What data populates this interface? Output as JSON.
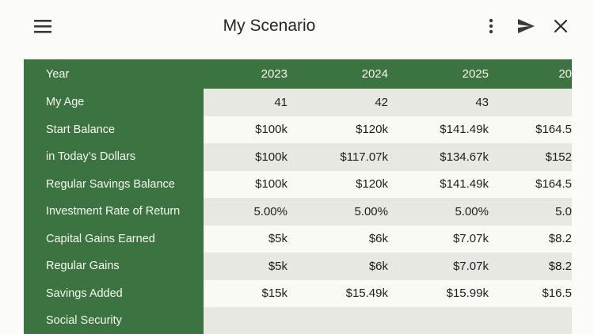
{
  "app_bar": {
    "title": "My Scenario",
    "icons": {
      "menu": "hamburger-menu",
      "more": "kebab-vertical-dots",
      "send": "send-arrow",
      "close": "close-x"
    }
  },
  "colors": {
    "green": "#3b7441",
    "row_dark": "#e8e8e2",
    "row_light": "#fafaf5",
    "page_bg": "#fbfbf7",
    "icon": "#3a3a3a",
    "header_text": "#f7f7f0",
    "value_text": "#1e1e1e"
  },
  "table": {
    "header": {
      "label": "Year",
      "columns": [
        "2023",
        "2024",
        "2025",
        "20"
      ]
    },
    "rows": [
      {
        "label": "My Age",
        "values": [
          "41",
          "42",
          "43",
          ""
        ]
      },
      {
        "label": "Start Balance",
        "values": [
          "$100k",
          "$120k",
          "$141.49k",
          "$164.5"
        ]
      },
      {
        "label": "in Today’s Dollars",
        "values": [
          "$100k",
          "$117.07k",
          "$134.67k",
          "$152"
        ]
      },
      {
        "label": "Regular Savings Balance",
        "values": [
          "$100k",
          "$120k",
          "$141.49k",
          "$164.5"
        ]
      },
      {
        "label": "Investment Rate of Return",
        "values": [
          "5.00%",
          "5.00%",
          "5.00%",
          "5.0"
        ]
      },
      {
        "label": "Capital Gains Earned",
        "values": [
          "$5k",
          "$6k",
          "$7.07k",
          "$8.2"
        ]
      },
      {
        "label": "Regular Gains",
        "values": [
          "$5k",
          "$6k",
          "$7.07k",
          "$8.2"
        ]
      },
      {
        "label": "Savings Added",
        "values": [
          "$15k",
          "$15.49k",
          "$15.99k",
          "$16.5"
        ]
      },
      {
        "label": "Social Security",
        "values": [
          "",
          "",
          "",
          ""
        ]
      }
    ]
  }
}
